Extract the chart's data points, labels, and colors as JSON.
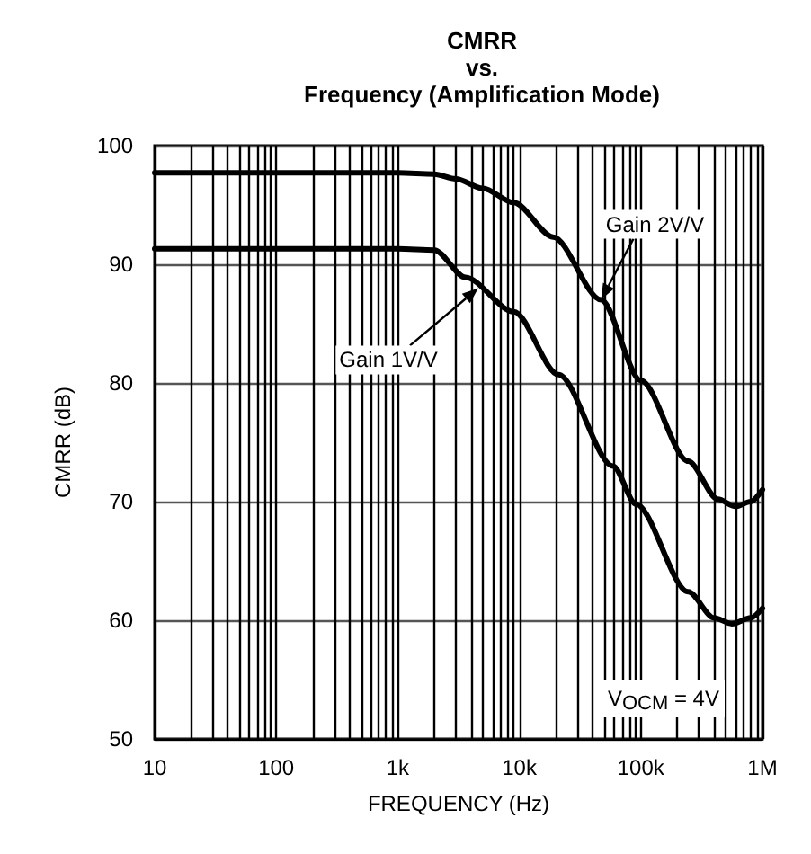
{
  "chart_data": {
    "type": "line",
    "title": "CMRR\nvs.\nFrequency (Amplification Mode)",
    "xlabel": "FREQUENCY (Hz)",
    "ylabel": "CMRR (dB)",
    "log": "x",
    "grid": true,
    "marker": "none",
    "line_style": "solid",
    "xlim": [
      10,
      1000000
    ],
    "ylim": [
      50,
      100
    ],
    "xticks": [
      {
        "value": 10,
        "label": "10"
      },
      {
        "value": 20,
        "label": null
      },
      {
        "value": 30,
        "label": null
      },
      {
        "value": 40,
        "label": null
      },
      {
        "value": 50,
        "label": null
      },
      {
        "value": 60,
        "label": null
      },
      {
        "value": 70,
        "label": null
      },
      {
        "value": 80,
        "label": null
      },
      {
        "value": 90,
        "label": null
      },
      {
        "value": 100,
        "label": "100"
      },
      {
        "value": 200,
        "label": null
      },
      {
        "value": 300,
        "label": null
      },
      {
        "value": 400,
        "label": null
      },
      {
        "value": 500,
        "label": null
      },
      {
        "value": 600,
        "label": null
      },
      {
        "value": 700,
        "label": null
      },
      {
        "value": 800,
        "label": null
      },
      {
        "value": 900,
        "label": null
      },
      {
        "value": 1000,
        "label": "1k"
      },
      {
        "value": 2000,
        "label": null
      },
      {
        "value": 3000,
        "label": null
      },
      {
        "value": 4000,
        "label": null
      },
      {
        "value": 5000,
        "label": null
      },
      {
        "value": 6000,
        "label": null
      },
      {
        "value": 7000,
        "label": null
      },
      {
        "value": 8000,
        "label": null
      },
      {
        "value": 9000,
        "label": null
      },
      {
        "value": 10000,
        "label": "10k"
      },
      {
        "value": 20000,
        "label": null
      },
      {
        "value": 30000,
        "label": null
      },
      {
        "value": 40000,
        "label": null
      },
      {
        "value": 50000,
        "label": null
      },
      {
        "value": 60000,
        "label": null
      },
      {
        "value": 70000,
        "label": null
      },
      {
        "value": 80000,
        "label": null
      },
      {
        "value": 90000,
        "label": null
      },
      {
        "value": 100000,
        "label": "100k"
      },
      {
        "value": 200000,
        "label": null
      },
      {
        "value": 300000,
        "label": null
      },
      {
        "value": 400000,
        "label": null
      },
      {
        "value": 500000,
        "label": null
      },
      {
        "value": 600000,
        "label": null
      },
      {
        "value": 700000,
        "label": null
      },
      {
        "value": 800000,
        "label": null
      },
      {
        "value": 900000,
        "label": null
      },
      {
        "value": 1000000,
        "label": "1M"
      }
    ],
    "yticks": [
      50,
      60,
      70,
      80,
      90,
      100
    ],
    "series": [
      {
        "color": "#000000",
        "x": [
          10,
          100,
          1000,
          2000,
          3000,
          5000,
          9000,
          19000,
          47000,
          100000,
          245000,
          430000,
          600000,
          800000,
          1000000
        ],
        "values": [
          97.7,
          97.7,
          97.7,
          97.6,
          97.2,
          96.4,
          95.2,
          92.3,
          87,
          80.2,
          73.4,
          70.2,
          69.6,
          70,
          71
        ]
      },
      {
        "color": "#000000",
        "x": [
          10,
          100,
          1000,
          2000,
          3600,
          9000,
          21000,
          59000,
          91000,
          245000,
          400000,
          560000,
          800000,
          1000000
        ],
        "values": [
          91.3,
          91.3,
          91.3,
          91.2,
          88.9,
          86,
          80.7,
          73,
          69.8,
          62.4,
          60.2,
          59.7,
          60.2,
          61
        ]
      }
    ],
    "annotations": [
      {
        "text": "Gain 2V/V",
        "x": 47000,
        "y": 87
      },
      {
        "text": "Gain 1V/V",
        "x": 4600,
        "y": 88
      },
      "V$_{OCM}$ = 4V"
    ]
  }
}
